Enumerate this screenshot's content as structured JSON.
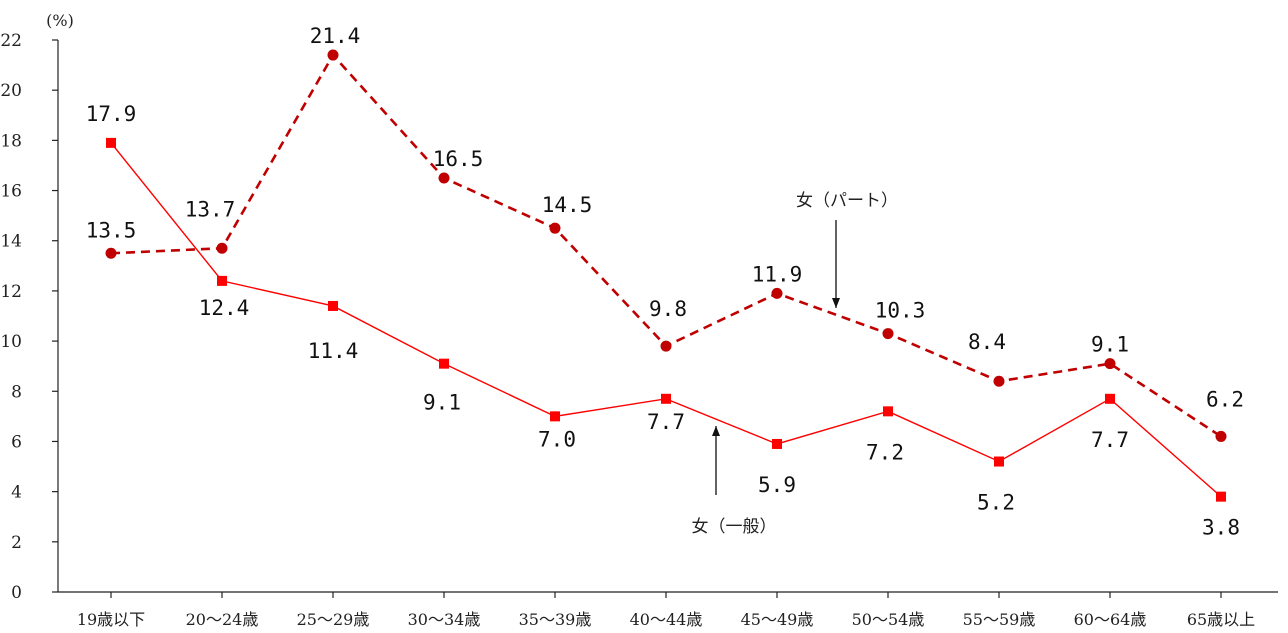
{
  "chart_data": {
    "type": "line",
    "title": "",
    "unit_label": "(%)",
    "xlabel": "",
    "ylabel": "",
    "ylim": [
      0,
      22
    ],
    "yticks": [
      0,
      2,
      4,
      6,
      8,
      10,
      12,
      14,
      16,
      18,
      20,
      22
    ],
    "categories": [
      "19歳以下",
      "20～24歳",
      "25～29歳",
      "30～34歳",
      "35～39歳",
      "40～44歳",
      "45～49歳",
      "50～54歳",
      "55～59歳",
      "60～64歳",
      "65歳以上"
    ],
    "series": [
      {
        "name": "女（パート）",
        "values": [
          13.5,
          13.7,
          21.4,
          16.5,
          14.5,
          9.8,
          11.9,
          10.3,
          8.4,
          9.1,
          6.2
        ],
        "labels": [
          "13.5",
          "13.7",
          "21.4",
          "16.5",
          "14.5",
          "9.8",
          "11.9",
          "10.3",
          "8.4",
          "9.1",
          "6.2"
        ],
        "color": "#c00000",
        "marker": "circle",
        "line_style": "dashed"
      },
      {
        "name": "女（一般）",
        "values": [
          17.9,
          12.4,
          11.4,
          9.1,
          7.0,
          7.7,
          5.9,
          7.2,
          5.2,
          7.7,
          3.8
        ],
        "labels": [
          "17.9",
          "12.4",
          "11.4",
          "9.1",
          "7.0",
          "7.7",
          "5.9",
          "7.2",
          "5.2",
          "7.7",
          "3.8"
        ],
        "color": "#ff0000",
        "marker": "square",
        "line_style": "solid"
      }
    ],
    "annotations": [
      {
        "text": "女（パート）",
        "series": 0,
        "arrow": "down"
      },
      {
        "text": "女（一般）",
        "series": 1,
        "arrow": "up"
      }
    ],
    "grid": false,
    "legend": "none"
  }
}
